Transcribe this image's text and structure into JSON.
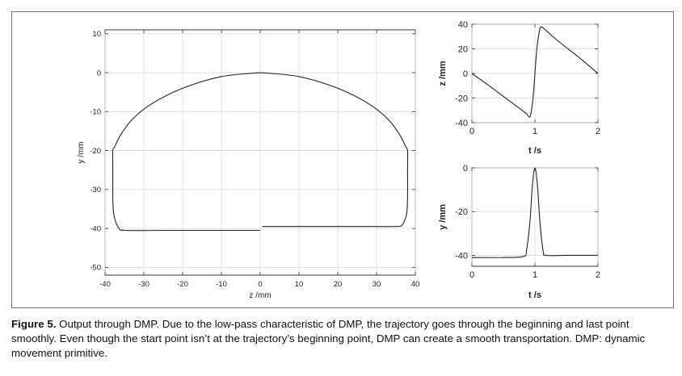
{
  "caption": {
    "label": "Figure 5.",
    "text": "Output through DMP. Due to the low-pass characteristic of DMP, the trajectory goes through the beginning and last point smoothly. Even though the start point isn’t at the trajectory’s beginning point, DMP can create a smooth transportation. DMP: dynamic movement primitive."
  },
  "chart_data": [
    {
      "id": "main",
      "type": "line",
      "xlabel": "z /mm",
      "ylabel": "y /mm",
      "xlim": [
        -40,
        40
      ],
      "ylim": [
        -52,
        11
      ],
      "xticks": [
        -40,
        -30,
        -20,
        -10,
        0,
        10,
        20,
        30,
        40
      ],
      "yticks": [
        10,
        0,
        -10,
        -20,
        -30,
        -40,
        -50
      ],
      "grid": true,
      "series": [
        {
          "x": [
            0,
            -10,
            -20,
            -28,
            -33,
            -36,
            -37.5,
            -38,
            -38,
            -38,
            -37.8,
            -37.2,
            -36.5,
            -35,
            -25,
            -15,
            -5,
            0
          ],
          "y": [
            0,
            -1,
            -4,
            -8,
            -12,
            -16,
            -19,
            -20,
            -25,
            -32,
            -36,
            -38.5,
            -39.8,
            -40.5,
            -40.5,
            -40.5,
            -40.5,
            -40.5
          ]
        },
        {
          "x": [
            0,
            10,
            20,
            28,
            33,
            36,
            37.5,
            38,
            38,
            38,
            37.8,
            37.2,
            36.5,
            35,
            25,
            15,
            5,
            0.5
          ],
          "y": [
            0,
            -1,
            -4,
            -8,
            -12,
            -16,
            -19,
            -20,
            -25,
            -32,
            -36,
            -38,
            -39.2,
            -39.5,
            -39.5,
            -39.5,
            -39.5,
            -39.5
          ]
        }
      ]
    },
    {
      "id": "top-right",
      "type": "line",
      "xlabel": "t /s",
      "ylabel": "z /mm",
      "xlim": [
        0,
        2
      ],
      "ylim": [
        -40,
        40
      ],
      "xticks": [
        0,
        1,
        2
      ],
      "yticks": [
        40,
        20,
        0,
        -20,
        -40
      ],
      "grid": true,
      "series": [
        {
          "x": [
            0,
            0.3,
            0.6,
            0.85,
            0.9,
            0.93,
            0.97,
            1.0,
            1.03,
            1.07,
            1.1,
            1.15,
            1.4,
            1.7,
            2.0
          ],
          "y": [
            0,
            -11,
            -22.5,
            -32,
            -35,
            -34,
            -20,
            0,
            20,
            34,
            38,
            36,
            25,
            13,
            0
          ]
        }
      ]
    },
    {
      "id": "bottom-right",
      "type": "line",
      "xlabel": "t /s",
      "ylabel": "y /mm",
      "xlim": [
        0,
        2
      ],
      "ylim": [
        -45,
        0
      ],
      "xticks": [
        0,
        1,
        2
      ],
      "yticks": [
        0,
        -20,
        -40
      ],
      "grid": true,
      "series": [
        {
          "x": [
            0,
            0.5,
            0.82,
            0.87,
            0.92,
            0.96,
            1.0,
            1.04,
            1.08,
            1.13,
            1.18,
            1.5,
            2.0
          ],
          "y": [
            -41,
            -41,
            -40.5,
            -37,
            -25,
            -8,
            0,
            -8,
            -25,
            -38,
            -40,
            -40,
            -40
          ]
        }
      ]
    }
  ]
}
